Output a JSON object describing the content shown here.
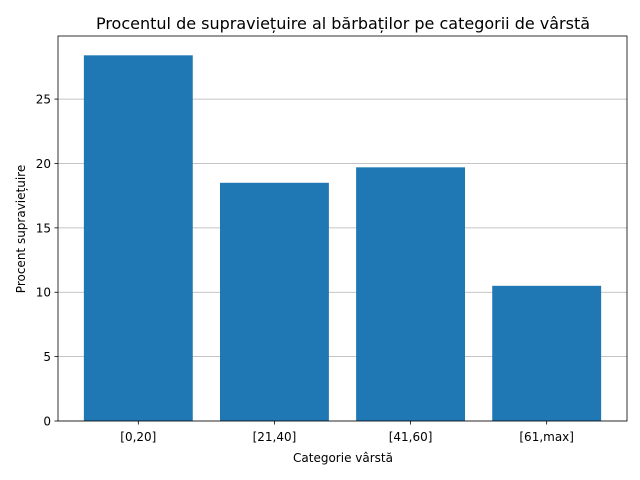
{
  "chart_data": {
    "type": "bar",
    "title": "Procentul de supraviețuire al bărbaților pe categorii de vârstă",
    "xlabel": "Categorie vârstă",
    "ylabel": "Procent supraviețuire",
    "categories": [
      "[0,20]",
      "[21,40]",
      "[41,60]",
      "[61,max]"
    ],
    "values": [
      28.4,
      18.5,
      19.7,
      10.5
    ],
    "ylim": [
      0,
      29.9
    ],
    "yticks": [
      0,
      5,
      10,
      15,
      20,
      25
    ],
    "grid": "horizontal",
    "legend": "none",
    "bar_color": "#1f77b4",
    "grid_color": "#b0b0b0"
  }
}
